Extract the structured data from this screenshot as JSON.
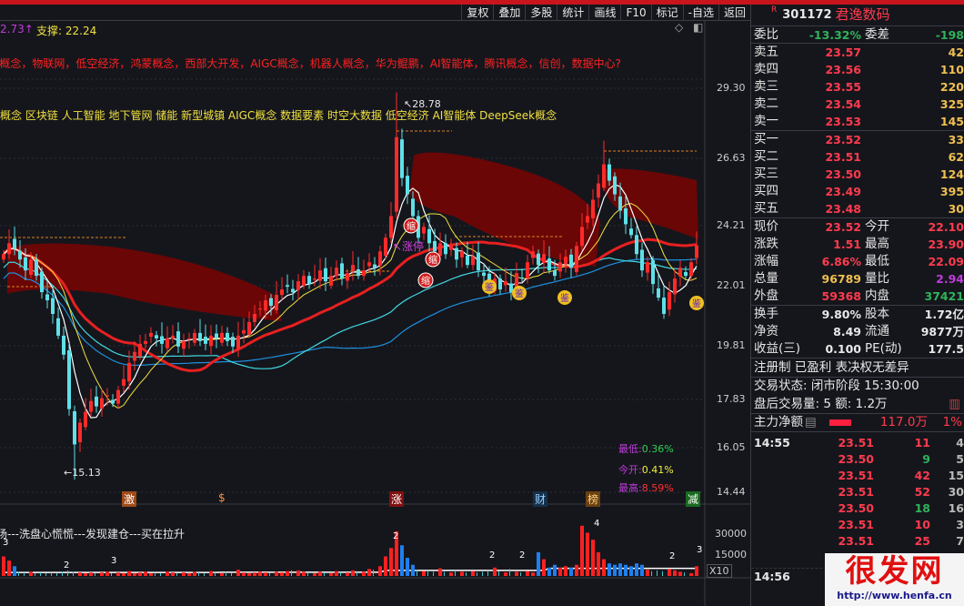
{
  "toolbar": {
    "buttons": [
      "复权",
      "叠加",
      "多股",
      "统计",
      "画线",
      "F10",
      "标记",
      "-自选",
      "返回"
    ]
  },
  "chart": {
    "resistance": "2.73↑",
    "support": "支撑: 22.24",
    "concepts_red": "l概念，物联网，低空经济，鸿蒙概念，西部大开发，AIGC概念，机器人概念，华为鲲鹏，AI智能体，腾讯概念，信创，数据中心?",
    "concepts_yellow": "概念 区块链 人工智能 地下管网 储能 新型城镇 AIGC概念 数据要素 时空大数据 低空经济 AI智能体 DeepSeek概念",
    "high_label": "28.78",
    "low_label": "15.13",
    "stats": {
      "low_label": "最低:",
      "low": "0.36%",
      "open_label": "今开:",
      "open": "0.41%",
      "high_label": "最高:",
      "high": "8.59%"
    },
    "markers": [
      "激",
      "$",
      "涨",
      "财",
      "榜",
      "减"
    ],
    "signals": {
      "shrink": "缩",
      "buy": "鉴",
      "rise": "涨停"
    },
    "price_axis": [
      "29.30",
      "26.63",
      "24.21",
      "22.01",
      "19.81",
      "17.83",
      "16.05",
      "14.44"
    ],
    "volume_axis": [
      "30000",
      "15000"
    ],
    "volume_scale": "X10",
    "volume_caption": "场---洗盘心慌慌---发现建仓---买在拉升",
    "volume_digits": [
      "3",
      "3",
      "2",
      "2",
      "2",
      "2",
      "4",
      "2",
      "3"
    ],
    "colors": {
      "up": "#ff2a2a",
      "down": "#5fe0e8",
      "ma5": "#ffffff",
      "ma10": "#f0e040",
      "ma60": "#e82020",
      "band": "#6a0606"
    }
  },
  "chart_data": {
    "type": "candlestick",
    "ylim": [
      14.44,
      29.3
    ],
    "close": [
      23.2,
      23.6,
      23.4,
      23.0,
      22.6,
      23.0,
      22.4,
      21.8,
      21.5,
      21.0,
      20.2,
      19.5,
      17.5,
      16.2,
      17.0,
      17.4,
      17.8,
      17.6,
      17.9,
      18.0,
      17.7,
      18.2,
      18.6,
      19.2,
      19.6,
      19.9,
      20.0,
      20.3,
      20.1,
      19.9,
      20.1,
      20.2,
      19.8,
      20.0,
      20.1,
      20.3,
      20.0,
      19.9,
      20.2,
      20.1,
      20.3,
      20.0,
      19.8,
      20.2,
      20.4,
      20.7,
      21.0,
      21.2,
      21.5,
      21.3,
      21.7,
      21.9,
      22.0,
      21.8,
      22.2,
      22.4,
      22.1,
      22.3,
      22.6,
      22.2,
      22.4,
      22.7,
      22.3,
      22.5,
      22.8,
      22.4,
      22.6,
      22.9,
      22.7,
      23.3,
      23.8,
      24.6,
      27.5,
      26.0,
      25.4,
      24.6,
      23.8,
      24.2,
      23.6,
      23.3,
      23.6,
      23.2,
      23.5,
      23.0,
      23.3,
      22.8,
      23.1,
      22.6,
      22.4,
      22.0,
      22.3,
      21.9,
      22.2,
      21.8,
      22.5,
      22.3,
      22.9,
      23.3,
      22.8,
      23.2,
      22.6,
      22.4,
      22.9,
      23.1,
      22.7,
      23.5,
      24.2,
      24.6,
      25.2,
      25.8,
      26.5,
      25.9,
      25.4,
      24.8,
      24.3,
      23.9,
      23.2,
      22.6,
      22.9,
      22.1,
      21.6,
      21.0,
      21.8,
      22.3,
      22.7,
      22.4,
      22.9,
      23.52
    ],
    "volume": [
      14000,
      11000,
      7000,
      3000,
      2500,
      3000,
      2000,
      2500,
      2000,
      2500,
      2000,
      3000,
      4000,
      3000,
      2500,
      2000,
      2500,
      2000,
      2500,
      3000,
      2000,
      2500,
      2000,
      3500,
      2000,
      2500,
      3000,
      2000,
      2500,
      2000,
      3000,
      2500,
      2000,
      2500,
      2000,
      3000,
      2500,
      2000,
      3500,
      2500,
      2000,
      3000,
      2500,
      4500,
      2500,
      2000,
      2500,
      3000,
      2500,
      2000,
      3000,
      2500,
      3500,
      4000,
      4000,
      3000,
      2500,
      2000,
      3000,
      2500,
      2000,
      3500,
      3000,
      2500,
      4000,
      3500,
      3000,
      5000,
      4500,
      7000,
      14000,
      20000,
      32000,
      22000,
      13000,
      8000,
      4500,
      3500,
      4000,
      3000,
      5500,
      3000,
      2500,
      4000,
      3000,
      2500,
      3500,
      2500,
      3000,
      4000,
      6000,
      3500,
      2500,
      5000,
      3000,
      2500,
      3500,
      2500,
      17000,
      12000,
      6000,
      8000,
      6000,
      7000,
      6000,
      8000,
      36000,
      31000,
      26000,
      17000,
      12000,
      9000,
      8000,
      9000,
      8000,
      7000,
      9000,
      8000,
      4500,
      3500,
      4000,
      3500,
      5000,
      4000,
      3000,
      2500,
      2000,
      7000
    ]
  },
  "panel": {
    "badge": "R",
    "code": "301172",
    "name": "君逸数码",
    "weibi_label": "委比",
    "weibi": "-13.32%",
    "weicha_label": "委差",
    "weicha": "-198",
    "asks": [
      {
        "label": "卖五",
        "price": "23.57",
        "vol": "42"
      },
      {
        "label": "卖四",
        "price": "23.56",
        "vol": "110"
      },
      {
        "label": "卖三",
        "price": "23.55",
        "vol": "220"
      },
      {
        "label": "卖二",
        "price": "23.54",
        "vol": "325"
      },
      {
        "label": "卖一",
        "price": "23.53",
        "vol": "145"
      }
    ],
    "bids": [
      {
        "label": "买一",
        "price": "23.52",
        "vol": "33"
      },
      {
        "label": "买二",
        "price": "23.51",
        "vol": "62"
      },
      {
        "label": "买三",
        "price": "23.50",
        "vol": "124"
      },
      {
        "label": "买四",
        "price": "23.49",
        "vol": "395"
      },
      {
        "label": "买五",
        "price": "23.48",
        "vol": "30"
      }
    ],
    "quote": [
      {
        "l": "现价",
        "v": "23.52",
        "l2": "今开",
        "v2": "22.10"
      },
      {
        "l": "涨跌",
        "v": "1.51",
        "l2": "最高",
        "v2": "23.90"
      },
      {
        "l": "涨幅",
        "v": "6.86%",
        "l2": "最低",
        "v2": "22.09"
      },
      {
        "l": "总量",
        "v": "96789",
        "l2": "量比",
        "v2": "2.94"
      },
      {
        "l": "外盘",
        "v": "59368",
        "l2": "内盘",
        "v2": "37421"
      }
    ],
    "fund": [
      {
        "l": "换手",
        "v": "9.80%",
        "l2": "股本",
        "v2": "1.72亿"
      },
      {
        "l": "净资",
        "v": "8.49",
        "l2": "流通",
        "v2": "9877万"
      },
      {
        "l": "收益(三)",
        "v": "0.100",
        "l2": "PE(动)",
        "v2": "177.5"
      }
    ],
    "tags": "注册制 已盈利 表决权无差异",
    "status": "交易状态: 闭市阶段 15:30:00",
    "after": "盘后交易量: 5  额: 1.2万",
    "main_label": "主力净额",
    "main_value": "117.0万",
    "main_pct": "1%",
    "ticks": [
      {
        "t": "14:55",
        "p": "23.51",
        "q": "11",
        "n": "4",
        "c": "red"
      },
      {
        "t": "",
        "p": "23.50",
        "q": "9",
        "n": "5",
        "c": "grn"
      },
      {
        "t": "",
        "p": "23.51",
        "q": "42",
        "n": "15",
        "c": "red"
      },
      {
        "t": "",
        "p": "23.51",
        "q": "52",
        "n": "30",
        "c": "red"
      },
      {
        "t": "",
        "p": "23.50",
        "q": "18",
        "n": "16",
        "c": "grn"
      },
      {
        "t": "",
        "p": "23.51",
        "q": "10",
        "n": "3",
        "c": "red"
      },
      {
        "t": "",
        "p": "23.51",
        "q": "25",
        "n": "7",
        "c": "red"
      },
      {
        "t": "",
        "p": "",
        "q": "",
        "n": "",
        "c": "red"
      },
      {
        "t": "14:56",
        "p": "",
        "q": "",
        "n": "",
        "c": "red"
      }
    ]
  },
  "watermark": {
    "text": "很发网",
    "url": "http://www.henfa.cn"
  }
}
